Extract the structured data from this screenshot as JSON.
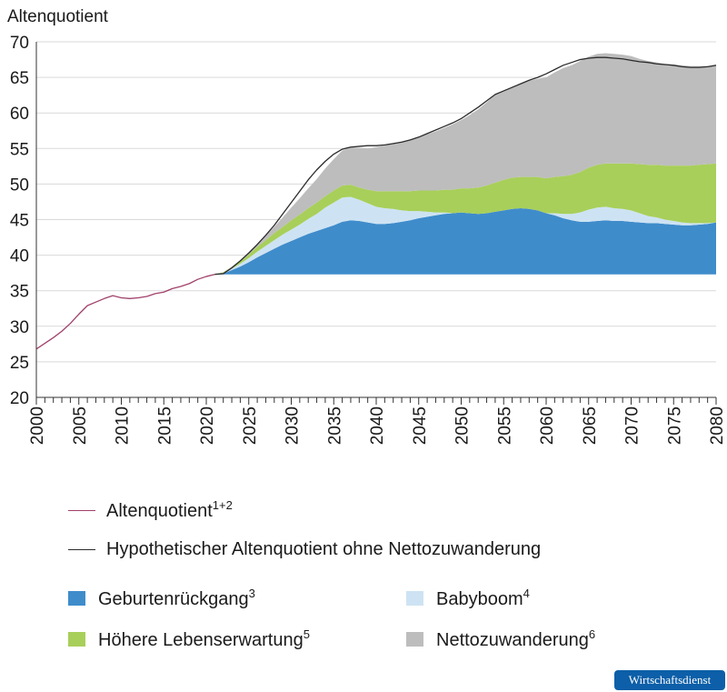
{
  "chart_data": {
    "type": "area",
    "y_axis_title": "Altenquotient",
    "ylim": [
      20,
      70
    ],
    "y_ticks": [
      20,
      25,
      30,
      35,
      40,
      45,
      50,
      55,
      60,
      65,
      70
    ],
    "x_range": [
      2000,
      2080
    ],
    "x_tick_labels": [
      2000,
      2005,
      2010,
      2015,
      2020,
      2025,
      2030,
      2035,
      2040,
      2045,
      2050,
      2055,
      2060,
      2065,
      2070,
      2075,
      2080
    ],
    "baseline": 37.3,
    "lines": [
      {
        "id": "altenquotient",
        "name": "Altenquotient",
        "note": "1+2",
        "color": "#a0406a",
        "points": [
          [
            2000,
            26.8
          ],
          [
            2001,
            27.6
          ],
          [
            2002,
            28.4
          ],
          [
            2003,
            29.3
          ],
          [
            2004,
            30.4
          ],
          [
            2005,
            31.7
          ],
          [
            2006,
            32.9
          ],
          [
            2007,
            33.4
          ],
          [
            2008,
            33.9
          ],
          [
            2009,
            34.3
          ],
          [
            2010,
            34.0
          ],
          [
            2011,
            33.9
          ],
          [
            2012,
            34.0
          ],
          [
            2013,
            34.2
          ],
          [
            2014,
            34.6
          ],
          [
            2015,
            34.8
          ],
          [
            2016,
            35.3
          ],
          [
            2017,
            35.6
          ],
          [
            2018,
            36.0
          ],
          [
            2019,
            36.6
          ],
          [
            2020,
            37.0
          ],
          [
            2021,
            37.3
          ]
        ]
      },
      {
        "id": "ohne-nettozuwanderung",
        "name": "Hypothetischer Altenquotient ohne Nettozuwanderung",
        "color": "#2b2b2b",
        "points": [
          [
            2021,
            37.3
          ],
          [
            2022,
            37.4
          ],
          [
            2023,
            38.2
          ],
          [
            2024,
            39.2
          ],
          [
            2025,
            40.3
          ],
          [
            2026,
            41.5
          ],
          [
            2027,
            42.8
          ],
          [
            2028,
            44.2
          ],
          [
            2029,
            45.8
          ],
          [
            2030,
            47.4
          ],
          [
            2031,
            49.0
          ],
          [
            2032,
            50.6
          ],
          [
            2033,
            52.0
          ],
          [
            2034,
            53.2
          ],
          [
            2035,
            54.2
          ],
          [
            2036,
            54.9
          ],
          [
            2037,
            55.2
          ],
          [
            2038,
            55.3
          ],
          [
            2039,
            55.4
          ],
          [
            2040,
            55.4
          ],
          [
            2041,
            55.5
          ],
          [
            2042,
            55.7
          ],
          [
            2043,
            55.9
          ],
          [
            2044,
            56.2
          ],
          [
            2045,
            56.6
          ],
          [
            2046,
            57.1
          ],
          [
            2047,
            57.6
          ],
          [
            2048,
            58.1
          ],
          [
            2049,
            58.6
          ],
          [
            2050,
            59.2
          ],
          [
            2051,
            60.0
          ],
          [
            2052,
            60.8
          ],
          [
            2053,
            61.7
          ],
          [
            2054,
            62.6
          ],
          [
            2055,
            63.1
          ],
          [
            2056,
            63.6
          ],
          [
            2057,
            64.1
          ],
          [
            2058,
            64.6
          ],
          [
            2059,
            65.0
          ],
          [
            2060,
            65.5
          ],
          [
            2061,
            66.1
          ],
          [
            2062,
            66.7
          ],
          [
            2063,
            67.1
          ],
          [
            2064,
            67.5
          ],
          [
            2065,
            67.7
          ],
          [
            2066,
            67.8
          ],
          [
            2067,
            67.8
          ],
          [
            2068,
            67.7
          ],
          [
            2069,
            67.6
          ],
          [
            2070,
            67.4
          ],
          [
            2071,
            67.2
          ],
          [
            2072,
            67.1
          ],
          [
            2073,
            66.9
          ],
          [
            2074,
            66.8
          ],
          [
            2075,
            66.7
          ],
          [
            2076,
            66.5
          ],
          [
            2077,
            66.4
          ],
          [
            2078,
            66.4
          ],
          [
            2079,
            66.5
          ],
          [
            2080,
            66.7
          ]
        ]
      }
    ],
    "series": [
      {
        "id": "geburtenrueckgang",
        "name": "Geburtenrückgang",
        "note": "3",
        "color": "#3f8ccb",
        "x": [
          2021,
          2022,
          2023,
          2024,
          2025,
          2026,
          2027,
          2028,
          2029,
          2030,
          2031,
          2032,
          2033,
          2034,
          2035,
          2036,
          2037,
          2038,
          2039,
          2040,
          2041,
          2042,
          2043,
          2044,
          2045,
          2046,
          2047,
          2048,
          2049,
          2050,
          2051,
          2052,
          2053,
          2054,
          2055,
          2056,
          2057,
          2058,
          2059,
          2060,
          2061,
          2062,
          2063,
          2064,
          2065,
          2066,
          2067,
          2068,
          2069,
          2070,
          2071,
          2072,
          2073,
          2074,
          2075,
          2076,
          2077,
          2078,
          2079,
          2080
        ],
        "values": [
          0,
          0.1,
          0.6,
          1.1,
          1.7,
          2.4,
          3.0,
          3.6,
          4.2,
          4.7,
          5.2,
          5.7,
          6.1,
          6.5,
          6.9,
          7.4,
          7.6,
          7.5,
          7.3,
          7.1,
          7.1,
          7.2,
          7.4,
          7.6,
          7.9,
          8.1,
          8.3,
          8.5,
          8.6,
          8.7,
          8.6,
          8.5,
          8.6,
          8.8,
          9.0,
          9.2,
          9.3,
          9.2,
          9.0,
          8.6,
          8.3,
          7.9,
          7.6,
          7.4,
          7.4,
          7.5,
          7.6,
          7.5,
          7.5,
          7.4,
          7.3,
          7.2,
          7.2,
          7.1,
          7.0,
          6.9,
          6.9,
          7.0,
          7.1,
          7.3
        ]
      },
      {
        "id": "babyboom",
        "name": "Babyboom",
        "note": "4",
        "color": "#cde3f3",
        "x": [
          2021,
          2022,
          2023,
          2024,
          2025,
          2026,
          2027,
          2028,
          2029,
          2030,
          2031,
          2032,
          2033,
          2034,
          2035,
          2036,
          2037,
          2038,
          2039,
          2040,
          2041,
          2042,
          2043,
          2044,
          2045,
          2046,
          2047,
          2048,
          2049,
          2050,
          2051,
          2052,
          2053,
          2054,
          2055,
          2056,
          2057,
          2058,
          2059,
          2060,
          2061,
          2062,
          2063,
          2064,
          2065,
          2066,
          2067,
          2068,
          2069,
          2070,
          2071,
          2072,
          2073,
          2074,
          2075,
          2076,
          2077,
          2078,
          2079,
          2080
        ],
        "values": [
          0,
          0.1,
          0.2,
          0.4,
          0.6,
          0.8,
          1.0,
          1.2,
          1.4,
          1.6,
          1.8,
          2.1,
          2.4,
          2.9,
          3.2,
          3.4,
          3.3,
          3.0,
          2.7,
          2.4,
          2.2,
          2.0,
          1.6,
          1.3,
          1.0,
          0.7,
          0.4,
          0.2,
          0,
          0,
          0,
          0,
          0,
          0,
          0,
          0,
          0,
          0,
          0,
          0,
          0.3,
          0.6,
          0.9,
          1.3,
          1.7,
          1.9,
          1.9,
          1.8,
          1.7,
          1.6,
          1.3,
          1.0,
          0.8,
          0.6,
          0.5,
          0.4,
          0.3,
          0.2,
          0.1,
          0
        ]
      },
      {
        "id": "hoehere-lebenserwartung",
        "name": "Höhere Lebenserwartung",
        "note": "5",
        "color": "#a8cf5a",
        "x": [
          2021,
          2022,
          2023,
          2024,
          2025,
          2026,
          2027,
          2028,
          2029,
          2030,
          2031,
          2032,
          2033,
          2034,
          2035,
          2036,
          2037,
          2038,
          2039,
          2040,
          2041,
          2042,
          2043,
          2044,
          2045,
          2046,
          2047,
          2048,
          2049,
          2050,
          2051,
          2052,
          2053,
          2054,
          2055,
          2056,
          2057,
          2058,
          2059,
          2060,
          2061,
          2062,
          2063,
          2064,
          2065,
          2066,
          2067,
          2068,
          2069,
          2070,
          2071,
          2072,
          2073,
          2074,
          2075,
          2076,
          2077,
          2078,
          2079,
          2080
        ],
        "values": [
          0,
          0.1,
          0.2,
          0.3,
          0.5,
          0.7,
          0.8,
          1.0,
          1.1,
          1.3,
          1.4,
          1.5,
          1.6,
          1.6,
          1.7,
          1.7,
          1.7,
          1.7,
          1.9,
          2.2,
          2.4,
          2.5,
          2.7,
          2.8,
          2.9,
          3.0,
          3.1,
          3.2,
          3.3,
          3.4,
          3.5,
          3.7,
          3.9,
          4.1,
          4.3,
          4.4,
          4.4,
          4.5,
          4.7,
          4.9,
          5.1,
          5.3,
          5.5,
          5.7,
          5.9,
          6.0,
          6.1,
          6.3,
          6.4,
          6.6,
          6.9,
          7.2,
          7.4,
          7.6,
          7.8,
          8.0,
          8.1,
          8.2,
          8.3,
          8.3
        ]
      },
      {
        "id": "nettozuwanderung",
        "name": "Nettozuwanderung",
        "note": "6",
        "color": "#bdbdbd",
        "x": [
          2021,
          2022,
          2023,
          2024,
          2025,
          2026,
          2027,
          2028,
          2029,
          2030,
          2031,
          2032,
          2033,
          2034,
          2035,
          2036,
          2037,
          2038,
          2039,
          2040,
          2041,
          2042,
          2043,
          2044,
          2045,
          2046,
          2047,
          2048,
          2049,
          2050,
          2051,
          2052,
          2053,
          2054,
          2055,
          2056,
          2057,
          2058,
          2059,
          2060,
          2061,
          2062,
          2063,
          2064,
          2065,
          2066,
          2067,
          2068,
          2069,
          2070,
          2071,
          2072,
          2073,
          2074,
          2075,
          2076,
          2077,
          2078,
          2079,
          2080
        ],
        "values": [
          0,
          0,
          0.1,
          0.2,
          0.3,
          0.4,
          0.6,
          0.9,
          1.3,
          1.8,
          2.3,
          2.8,
          3.3,
          3.9,
          4.4,
          4.9,
          5.3,
          5.6,
          5.8,
          6.2,
          6.4,
          6.7,
          6.9,
          7.2,
          7.5,
          7.9,
          8.3,
          8.7,
          9.2,
          9.6,
          10.3,
          11.0,
          11.7,
          12.4,
          12.5,
          12.8,
          13.1,
          13.5,
          13.8,
          14.2,
          14.7,
          15.2,
          15.4,
          15.6,
          15.6,
          15.6,
          15.5,
          15.4,
          15.3,
          15.1,
          14.8,
          14.6,
          14.4,
          14.3,
          14.2,
          14.1,
          14.0,
          13.9,
          13.8,
          13.7
        ]
      }
    ]
  },
  "legend": {
    "altenquotient": {
      "label": "Altenquotient",
      "note": "1+2",
      "color": "#a0406a"
    },
    "ohne_nettozuwanderung": {
      "label": "Hypothetischer Altenquotient ohne Nettozuwanderung",
      "color": "#2b2b2b"
    },
    "geburtenrueckgang": {
      "label": "Geburtenrückgang",
      "note": "3",
      "color": "#3f8ccb"
    },
    "babyboom": {
      "label": "Babyboom",
      "note": "4",
      "color": "#cde3f3"
    },
    "hoehere_lebenserwartung": {
      "label": "Höhere Lebenserwartung",
      "note": "5",
      "color": "#a8cf5a"
    },
    "nettozuwanderung": {
      "label": "Nettozuwanderung",
      "note": "6",
      "color": "#bdbdbd"
    }
  },
  "badge": {
    "text": "Wirtschaftsdienst"
  }
}
